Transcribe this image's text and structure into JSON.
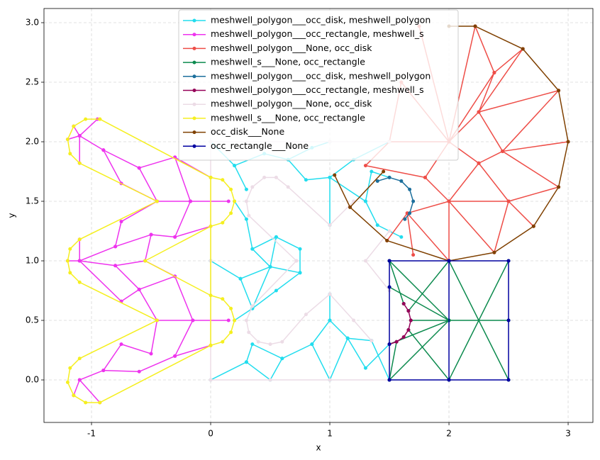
{
  "chart_data": {
    "type": "line",
    "xlabel": "x",
    "ylabel": "y",
    "xlim": [
      -1.399,
      3.208
    ],
    "ylim": [
      -0.357,
      3.119
    ],
    "xticks": [
      -1,
      0,
      1,
      2,
      3
    ],
    "yticks": [
      {
        "value": 0,
        "label": "0.0"
      },
      {
        "value": 0.5,
        "label": "0.5"
      },
      {
        "value": 1,
        "label": "1.0"
      },
      {
        "value": 1.5,
        "label": "1.5"
      },
      {
        "value": 2,
        "label": "2.0"
      },
      {
        "value": 2.5,
        "label": "2.5"
      },
      {
        "value": 3,
        "label": "3.0"
      }
    ],
    "grid": true,
    "legend": "upper center",
    "series": [
      {
        "name": "meshwell_polygon___occ_disk, meshwell_polygon",
        "color": "#22ddee",
        "x": [
          0,
          0.3,
          0.5,
          0.6,
          0.85,
          1,
          1.15,
          1.3,
          1.5,
          null,
          0.3,
          0.35,
          0.6,
          null,
          0.85,
          1,
          1.15,
          null,
          0.2,
          0.35,
          0.25,
          0,
          null,
          0.35,
          0.5,
          0.75,
          0.55,
          0.35,
          null,
          0.25,
          0.5,
          0.35,
          0.55,
          0.5,
          null,
          0.55,
          0.75,
          0.75,
          null,
          0.2,
          0.3,
          0.35,
          null,
          0,
          0.2,
          0.45,
          0.65,
          0.85,
          1,
          null,
          0.2,
          0.3,
          null,
          0.65,
          0.8,
          1,
          1.2,
          1.5,
          null,
          1,
          1.3,
          1.35,
          1.5,
          null,
          1.3,
          1.4,
          1.6,
          null,
          1,
          1,
          null,
          1,
          1,
          null,
          1.15,
          1.35,
          1.5
        ],
        "values": [
          0,
          0.15,
          0,
          0.18,
          0.3,
          0,
          0.35,
          0.1,
          0.3,
          null,
          0.15,
          0.3,
          0.18,
          null,
          0.3,
          0.5,
          0.35,
          null,
          0.5,
          0.6,
          0.85,
          1,
          null,
          0.6,
          0.95,
          0.9,
          0.75,
          0.6,
          null,
          0.85,
          0.95,
          1.1,
          1.2,
          0.95,
          null,
          1.2,
          1.1,
          0.9,
          null,
          1.5,
          1.35,
          1.1,
          null,
          2,
          1.8,
          1.9,
          1.85,
          1.95,
          2,
          null,
          1.8,
          1.6,
          null,
          1.85,
          1.68,
          1.7,
          1.85,
          2,
          null,
          1.7,
          1.5,
          1.75,
          1.7,
          null,
          1.5,
          1.3,
          1.2,
          null,
          1.3,
          1.7,
          null,
          0.5,
          0.72,
          null,
          0.35,
          0.33,
          0
        ]
      },
      {
        "name": "meshwell_polygon___occ_rectangle, meshwell_s",
        "color": "#ee33ee",
        "x": [
          -1.1,
          -0.9,
          -0.6,
          -0.3,
          -0.17,
          0.15,
          null,
          -0.9,
          -0.75,
          -0.45,
          -0.6,
          null,
          -0.45,
          -0.17,
          null,
          -0.3,
          0,
          null,
          -1.2,
          -1.1,
          -0.95,
          null,
          -1.1,
          -1.1,
          -1.15,
          null,
          -1.1,
          -0.8,
          -0.75,
          -0.45,
          null,
          -0.8,
          -0.5,
          -0.3,
          -0.17,
          null,
          -0.5,
          -0.55,
          -0.8,
          -1.1,
          null,
          -0.8,
          -0.6,
          -0.3,
          -0.15,
          0.15,
          null,
          -1.1,
          -0.75,
          -0.6,
          -0.45,
          -0.15,
          null,
          -0.3,
          -0.55,
          null,
          -0.15,
          -0.3,
          -0.6,
          -0.9,
          -1.1,
          null,
          -0.45,
          -0.5,
          -0.75,
          -0.9,
          null,
          -0.3,
          0,
          null,
          -1.15,
          -1.1,
          -0.93,
          null,
          -1.2,
          -1.1,
          -1.1,
          null,
          -0.3,
          0
        ],
        "values": [
          2.05,
          1.93,
          1.78,
          1.87,
          1.5,
          1.5,
          null,
          1.93,
          1.65,
          1.5,
          1.78,
          null,
          1.5,
          1.5,
          null,
          1.87,
          1.7,
          null,
          2.02,
          2.05,
          2.19,
          null,
          1.82,
          2.05,
          2.13,
          null,
          1,
          1.12,
          1.33,
          1.5,
          null,
          1.12,
          1.22,
          1.2,
          1.5,
          null,
          1.22,
          1,
          0.96,
          1,
          null,
          0.96,
          0.76,
          0.87,
          0.5,
          0.5,
          null,
          1,
          0.66,
          0.76,
          0.5,
          0.5,
          null,
          0.87,
          1,
          null,
          0.5,
          0.2,
          0.07,
          0.08,
          0,
          null,
          0.5,
          0.22,
          0.3,
          0.08,
          null,
          0.2,
          0.29,
          null,
          -0.13,
          0,
          -0.19,
          null,
          1,
          1,
          1.18,
          null,
          1.2,
          1.29
        ]
      },
      {
        "name": "meshwell_polygon___None, occ_disk",
        "color": "#ee4e48",
        "x": [
          2.22,
          2.38,
          2.62,
          2.25,
          2.92,
          2.45,
          3,
          null,
          2.45,
          2.92,
          2.5,
          2.71,
          null,
          2.5,
          2.38,
          2,
          2,
          null,
          2.25,
          2.45,
          2.25,
          2.5,
          2,
          2.25,
          2,
          2.25,
          2.38,
          2,
          null,
          1.75,
          2,
          1.6,
          1.5,
          2,
          null,
          1.5,
          1.3,
          1.8,
          2,
          1.65,
          1.48,
          null,
          1.8,
          2,
          null,
          2,
          1.65,
          1.7,
          null,
          2,
          2.22
        ],
        "values": [
          2.97,
          2.58,
          2.78,
          2.25,
          2.43,
          1.92,
          2,
          null,
          1.92,
          1.62,
          1.5,
          1.29,
          null,
          1.5,
          1.07,
          1.5,
          1,
          null,
          2.25,
          1.92,
          1.82,
          1.5,
          1.5,
          1.82,
          2,
          2.25,
          2.58,
          2,
          null,
          2.97,
          2,
          2.5,
          2,
          2,
          null,
          2,
          1.8,
          1.7,
          1.5,
          1.4,
          1.17,
          null,
          1.7,
          2,
          null,
          1,
          1.4,
          1.05,
          null,
          2,
          2.97
        ]
      },
      {
        "name": "meshwell_s___None, occ_rectangle",
        "color": "#0c8a4e",
        "x": [
          2,
          2.5,
          null,
          2.5,
          2,
          null,
          2,
          2.5,
          null,
          1.5,
          2,
          1.5,
          null,
          1.68,
          2,
          null,
          1.66,
          2,
          null,
          1.66,
          2,
          null,
          1.5,
          1.62,
          null,
          1.5,
          1.56,
          null,
          1.5,
          2,
          1.5
        ],
        "values": [
          0,
          1,
          null,
          0,
          1,
          null,
          0.5,
          0.5,
          null,
          0,
          0.5,
          1,
          null,
          0.5,
          0.5,
          null,
          0.58,
          1,
          null,
          0.42,
          0,
          null,
          1,
          0.64,
          null,
          0,
          0.32,
          null,
          0.78,
          0.5,
          0.3
        ]
      },
      {
        "name": "meshwell_polygon___occ_disk, meshwell_polygon",
        "color": "#1c6f9c",
        "x": [
          1.4,
          1.5,
          1.6,
          1.67,
          1.7,
          1.67,
          1.63
        ],
        "values": [
          1.67,
          1.7,
          1.67,
          1.6,
          1.5,
          1.4,
          1.35
        ]
      },
      {
        "name": "meshwell_polygon___occ_rectangle, meshwell_s",
        "color": "#950058",
        "x": [
          1.62,
          1.66,
          1.68,
          1.66,
          1.62,
          1.56,
          1.5
        ],
        "values": [
          0.64,
          0.58,
          0.5,
          0.42,
          0.36,
          0.32,
          0.3
        ]
      },
      {
        "name": "meshwell_polygon___None, occ_disk",
        "color": "#ecdce6",
        "x": [
          0,
          0.5,
          1,
          1.5,
          null,
          0,
          0,
          0,
          1,
          1.5,
          null,
          0.72,
          0.32,
          0.3,
          0.35,
          0.45,
          0.55,
          0.65,
          1,
          1.2,
          null,
          0.72,
          0.35,
          0.3,
          0.32,
          0.4,
          0.5,
          0.6,
          0.8,
          1,
          1.2,
          1.35,
          null,
          1.5,
          1.3,
          1.5
        ],
        "values": [
          0,
          0,
          0,
          0,
          null,
          0,
          1,
          2,
          2,
          2,
          null,
          1,
          1.38,
          1.5,
          1.62,
          1.7,
          1.7,
          1.62,
          1.3,
          1.5,
          null,
          1,
          0.62,
          0.5,
          0.4,
          0.32,
          0.3,
          0.32,
          0.55,
          0.72,
          0.5,
          0.33,
          null,
          0.75,
          1,
          1.25
        ]
      },
      {
        "name": "meshwell_s___None, occ_rectangle",
        "color": "#f5ef20",
        "x": [
          -0.93,
          0,
          0.1,
          0.17,
          0.2,
          0.17,
          0.1,
          0,
          -0.55,
          0,
          0.1,
          0.17,
          0.2,
          0.17,
          0.1,
          0,
          -0.93,
          -1.05,
          -1.15,
          -1.2,
          -1.18,
          -1.1,
          -0.45,
          -1.1,
          -1.18,
          -1.2,
          -1.18,
          -1.1,
          -0.45,
          -1.1,
          -1.18,
          -1.2,
          -1.15,
          -1.05,
          -0.93,
          null,
          0,
          0
        ],
        "values": [
          2.19,
          1.7,
          1.68,
          1.6,
          1.5,
          1.4,
          1.32,
          1.29,
          1,
          0.71,
          0.68,
          0.6,
          0.5,
          0.4,
          0.32,
          0.29,
          -0.19,
          -0.19,
          -0.13,
          -0.02,
          0.1,
          0.18,
          0.5,
          0.82,
          0.9,
          1,
          1.1,
          1.18,
          1.5,
          1.82,
          1.9,
          2.02,
          2.13,
          2.19,
          2.19,
          null,
          0.29,
          1.7
        ]
      },
      {
        "name": "occ_disk___None",
        "color": "#7f4000",
        "x": [
          2,
          2.22,
          2.62,
          2.92,
          3,
          2.92,
          2.71,
          2.38,
          2,
          1.48,
          1.17,
          1.04,
          null,
          1.17,
          1.45
        ],
        "values": [
          2.97,
          2.97,
          2.78,
          2.43,
          2,
          1.62,
          1.29,
          1.07,
          1,
          1.17,
          1.45,
          1.72,
          null,
          1.45,
          1.75
        ]
      },
      {
        "name": "occ_rectangle___None",
        "color": "#0000a0",
        "x": [
          1.5,
          2,
          2.5,
          2.5,
          2.5,
          2,
          1.5,
          1.5,
          1.5,
          1.5,
          null,
          2,
          2
        ],
        "values": [
          0,
          0,
          0,
          0.5,
          1,
          1,
          1,
          0.78,
          0.3,
          0,
          null,
          0,
          1
        ]
      }
    ]
  }
}
